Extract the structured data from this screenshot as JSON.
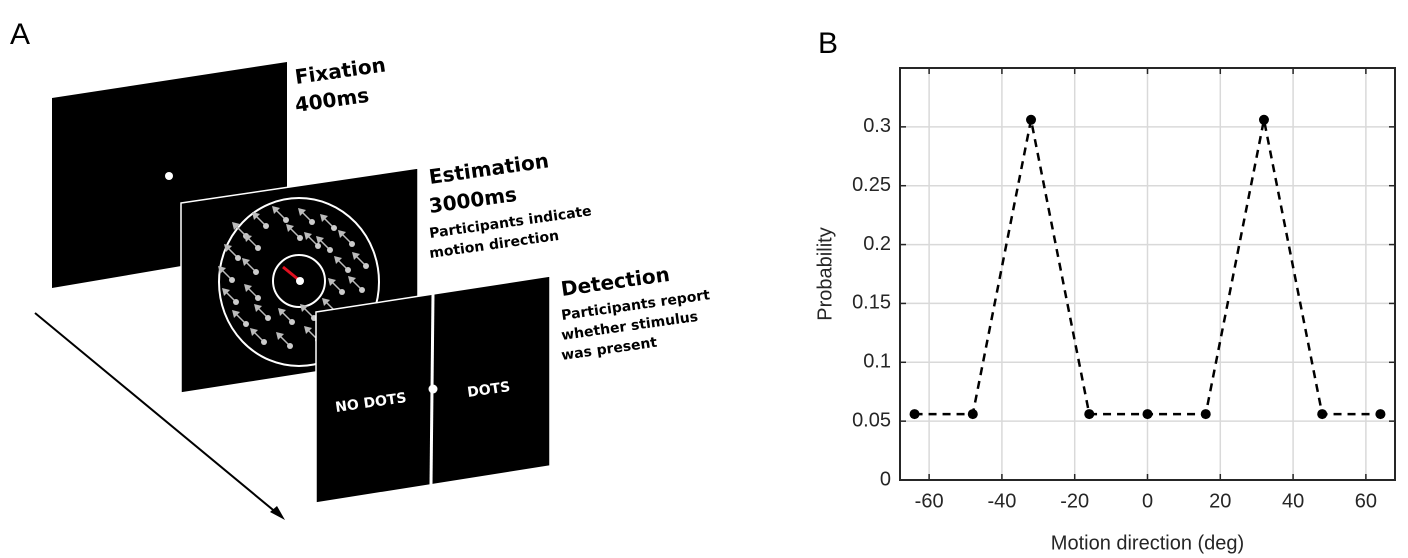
{
  "panel_labels": [
    "A",
    "B"
  ],
  "diagram": {
    "fixation": {
      "title": "Fixation",
      "duration": "400ms"
    },
    "estimation": {
      "title": "Estimation",
      "duration": "3000ms",
      "lines": [
        "Participants indicate",
        "motion direction"
      ]
    },
    "detection": {
      "title": "Detection",
      "lines": [
        "Participants report",
        "whether stimulus",
        "was present"
      ],
      "left_option": "NO DOTS",
      "right_option": "DOTS"
    }
  },
  "chart_data": {
    "type": "line",
    "x": [
      -64,
      -48,
      -32,
      -16,
      0,
      16,
      32,
      48,
      64
    ],
    "values": [
      0.056,
      0.056,
      0.306,
      0.056,
      0.056,
      0.056,
      0.306,
      0.056,
      0.056
    ],
    "color": "#000000",
    "dashed": true,
    "markers": true,
    "xlabel": "Motion direction (deg)",
    "ylabel": "Probability",
    "xlim": [
      -68,
      68
    ],
    "xticks": [
      -60,
      -40,
      -20,
      0,
      20,
      40,
      60
    ],
    "ylim": [
      0,
      0.35
    ],
    "yticks": [
      0,
      0.05,
      0.1,
      0.15,
      0.2,
      0.25,
      0.3
    ],
    "grid": true
  }
}
